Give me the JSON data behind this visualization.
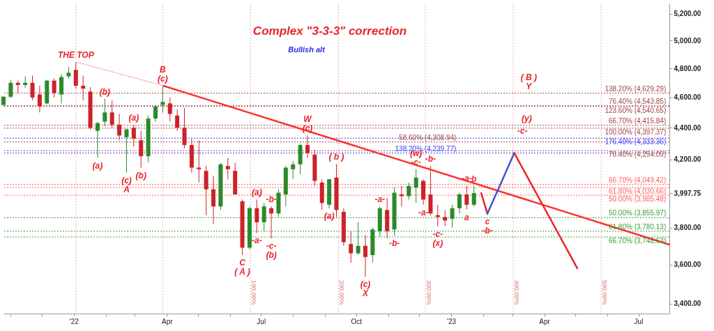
{
  "chart_data": {
    "type": "candlestick",
    "title": "Complex \"3-3-3\" correction",
    "subtitle": "Bullish alt",
    "x": [
      "2021-10-25",
      "2021-11-01",
      "2021-11-08",
      "2021-11-15",
      "2021-11-22",
      "2021-11-29",
      "2021-12-06",
      "2021-12-13",
      "2021-12-20",
      "2021-12-27",
      "2022-01-03",
      "2022-01-10",
      "2022-01-17",
      "2022-01-24",
      "2022-01-31",
      "2022-02-07",
      "2022-02-14",
      "2022-02-21",
      "2022-02-28",
      "2022-03-07",
      "2022-03-14",
      "2022-03-21",
      "2022-03-28",
      "2022-04-04",
      "2022-04-11",
      "2022-04-18",
      "2022-04-25",
      "2022-05-02",
      "2022-05-09",
      "2022-05-16",
      "2022-05-23",
      "2022-05-30",
      "2022-06-06",
      "2022-06-13",
      "2022-06-20",
      "2022-06-27",
      "2022-07-04",
      "2022-07-11",
      "2022-07-18",
      "2022-07-25",
      "2022-08-01",
      "2022-08-08",
      "2022-08-15",
      "2022-08-22",
      "2022-08-29",
      "2022-09-05",
      "2022-09-12",
      "2022-09-19",
      "2022-09-26",
      "2022-10-03",
      "2022-10-10",
      "2022-10-17",
      "2022-10-24",
      "2022-10-31",
      "2022-11-07",
      "2022-11-14",
      "2022-11-21",
      "2022-11-28",
      "2022-12-05",
      "2022-12-12",
      "2022-12-19",
      "2022-12-26",
      "2023-01-02",
      "2023-01-09",
      "2023-01-16",
      "2023-01-23"
    ],
    "ohlc": [
      [
        4550,
        4610,
        4540,
        4605
      ],
      [
        4605,
        4720,
        4595,
        4700
      ],
      [
        4700,
        4715,
        4630,
        4685
      ],
      [
        4685,
        4745,
        4665,
        4700
      ],
      [
        4700,
        4750,
        4580,
        4600
      ],
      [
        4620,
        4680,
        4500,
        4540
      ],
      [
        4560,
        4720,
        4555,
        4715
      ],
      [
        4715,
        4730,
        4600,
        4630
      ],
      [
        4620,
        4760,
        4560,
        4740
      ],
      [
        4745,
        4810,
        4730,
        4770
      ],
      [
        4790,
        4844,
        4660,
        4680
      ],
      [
        4680,
        4750,
        4580,
        4660
      ],
      [
        4640,
        4670,
        4390,
        4400
      ],
      [
        4380,
        4440,
        4210,
        4430
      ],
      [
        4440,
        4590,
        4410,
        4500
      ],
      [
        4500,
        4580,
        4400,
        4420
      ],
      [
        4420,
        4490,
        4320,
        4350
      ],
      [
        4340,
        4390,
        4120,
        4390
      ],
      [
        4400,
        4420,
        4280,
        4330
      ],
      [
        4320,
        4380,
        4150,
        4220
      ],
      [
        4220,
        4480,
        4180,
        4460
      ],
      [
        4460,
        4550,
        4440,
        4540
      ],
      [
        4550,
        4679,
        4500,
        4570
      ],
      [
        4560,
        4600,
        4440,
        4490
      ],
      [
        4480,
        4520,
        4380,
        4400
      ],
      [
        4400,
        4530,
        4270,
        4290
      ],
      [
        4290,
        4330,
        4120,
        4150
      ],
      [
        4150,
        4320,
        4060,
        4140
      ],
      [
        4130,
        4160,
        3870,
        4020
      ],
      [
        4020,
        4100,
        3820,
        3920
      ],
      [
        3920,
        4180,
        3900,
        4170
      ],
      [
        4160,
        4210,
        4080,
        4140
      ],
      [
        4130,
        4180,
        3990,
        3990
      ],
      [
        3950,
        3960,
        3650,
        3690
      ],
      [
        3690,
        3920,
        3680,
        3910
      ],
      [
        3910,
        3960,
        3770,
        3830
      ],
      [
        3830,
        3940,
        3780,
        3920
      ],
      [
        3910,
        3920,
        3740,
        3880
      ],
      [
        3880,
        4020,
        3860,
        4000
      ],
      [
        3990,
        4160,
        3920,
        4150
      ],
      [
        4140,
        4190,
        4080,
        4170
      ],
      [
        4170,
        4300,
        4110,
        4290
      ],
      [
        4290,
        4352,
        4210,
        4240
      ],
      [
        4230,
        4260,
        4040,
        4070
      ],
      [
        4060,
        4080,
        3900,
        3940
      ],
      [
        3930,
        4080,
        3910,
        4080
      ],
      [
        4090,
        4172,
        3860,
        3900
      ],
      [
        3890,
        3910,
        3700,
        3720
      ],
      [
        3710,
        3780,
        3610,
        3660
      ],
      [
        3660,
        3830,
        3650,
        3700
      ],
      [
        3700,
        3760,
        3536,
        3640
      ],
      [
        3650,
        3800,
        3610,
        3790
      ],
      [
        3780,
        3920,
        3750,
        3910
      ],
      [
        3900,
        3970,
        3740,
        3780
      ],
      [
        3790,
        4030,
        3755,
        4000
      ],
      [
        3990,
        4040,
        3920,
        3980
      ],
      [
        3980,
        4060,
        3960,
        4040
      ],
      [
        4030,
        4140,
        3940,
        4090
      ],
      [
        4070,
        4080,
        3930,
        3960
      ],
      [
        3990,
        4160,
        3870,
        3880
      ],
      [
        3870,
        3930,
        3807,
        3860
      ],
      [
        3860,
        3900,
        3810,
        3840
      ],
      [
        3850,
        3930,
        3800,
        3910
      ],
      [
        3910,
        4000,
        3880,
        3990
      ],
      [
        3990,
        4043,
        3902,
        3930
      ],
      [
        3930,
        4040,
        3920,
        3997.75
      ]
    ],
    "colors": [
      "#2a8a2a",
      "#2a8a2a",
      "#cc2229",
      "#2a8a2a",
      "#cc2229",
      "#cc2229",
      "#2a8a2a",
      "#cc2229",
      "#2a8a2a",
      "#2a8a2a",
      "#cc2229",
      "#cc2229",
      "#cc2229",
      "#2a8a2a",
      "#2a8a2a",
      "#cc2229",
      "#cc2229",
      "#2a8a2a",
      "#cc2229",
      "#cc2229",
      "#2a8a2a",
      "#2a8a2a",
      "#2a8a2a",
      "#cc2229",
      "#cc2229",
      "#cc2229",
      "#cc2229",
      "#cc2229",
      "#cc2229",
      "#cc2229",
      "#2a8a2a",
      "#cc2229",
      "#cc2229",
      "#cc2229",
      "#2a8a2a",
      "#cc2229",
      "#2a8a2a",
      "#cc2229",
      "#2a8a2a",
      "#2a8a2a",
      "#2a8a2a",
      "#2a8a2a",
      "#cc2229",
      "#cc2229",
      "#cc2229",
      "#2a8a2a",
      "#cc2229",
      "#cc2229",
      "#cc2229",
      "#2a8a2a",
      "#cc2229",
      "#2a8a2a",
      "#2a8a2a",
      "#cc2229",
      "#2a8a2a",
      "#cc2229",
      "#2a8a2a",
      "#2a8a2a",
      "#cc2229",
      "#cc2229",
      "#cc2229",
      "#cc2229",
      "#2a8a2a",
      "#2a8a2a",
      "#cc2229",
      "#2a8a2a"
    ],
    "series": [
      {
        "type": "line",
        "x": [
          "2022-01-04",
          "2022-03-29"
        ],
        "values": [
          4844,
          4679
        ],
        "color": "#f2a0a0",
        "line_style": "dotted"
      },
      {
        "type": "line",
        "x": [
          "2022-03-29",
          "2023-07-31"
        ],
        "values": [
          4679,
          3707
        ],
        "color": "#ff3030",
        "line_style": "solid"
      },
      {
        "type": "line",
        "x": [
          "2023-01-30",
          "2023-02-05"
        ],
        "values": [
          3997.75,
          3879
        ],
        "color": "#e8242b",
        "line_style": "solid"
      },
      {
        "type": "line",
        "x": [
          "2023-02-05",
          "2023-03-03"
        ],
        "values": [
          3879,
          4240
        ],
        "color": "#4450d0",
        "line_style": "solid"
      },
      {
        "type": "line",
        "x": [
          "2023-03-03",
          "2023-05-03"
        ],
        "values": [
          4240,
          3580
        ],
        "color": "#e8242b",
        "line_style": "solid"
      }
    ],
    "log": true,
    "xlim": [
      "2021-10-25",
      "2023-07-31"
    ],
    "xticks": [
      {
        "value": "2021-11-01",
        "label": null
      },
      {
        "value": "2021-12-01",
        "label": null
      },
      {
        "value": "2022-01-01",
        "label": "'22"
      },
      {
        "value": "2022-02-01",
        "label": null
      },
      {
        "value": "2022-03-01",
        "label": null
      },
      {
        "value": "2022-04-01",
        "label": "Apr"
      },
      {
        "value": "2022-05-01",
        "label": null
      },
      {
        "value": "2022-06-01",
        "label": null
      },
      {
        "value": "2022-07-01",
        "label": "Jul"
      },
      {
        "value": "2022-08-01",
        "label": null
      },
      {
        "value": "2022-09-01",
        "label": null
      },
      {
        "value": "2022-10-01",
        "label": "Oct"
      },
      {
        "value": "2022-11-01",
        "label": null
      },
      {
        "value": "2022-12-01",
        "label": null
      },
      {
        "value": "2023-01-01",
        "label": "'23"
      },
      {
        "value": "2023-02-01",
        "label": null
      },
      {
        "value": "2023-03-01",
        "label": null
      },
      {
        "value": "2023-04-01",
        "label": "Apr"
      },
      {
        "value": "2023-05-01",
        "label": null
      },
      {
        "value": "2023-06-01",
        "label": null
      },
      {
        "value": "2023-07-01",
        "label": "Jul"
      }
    ],
    "ylim": [
      3350,
      5280
    ],
    "yticks": [
      {
        "value": 3400,
        "label": "3,400.00"
      },
      {
        "value": 3600,
        "label": "3,600.00"
      },
      {
        "value": 3800,
        "label": "3,800.00"
      },
      {
        "value": 3997.75,
        "label": "3,997.75"
      },
      {
        "value": 4200,
        "label": "4,200.00"
      },
      {
        "value": 4400,
        "label": "4,400.00"
      },
      {
        "value": 4600,
        "label": "4,600.00"
      },
      {
        "value": 4800,
        "label": "4,800.00"
      },
      {
        "value": 5000,
        "label": "5,000.00"
      },
      {
        "value": 5200,
        "label": "5,200.00"
      }
    ],
    "grid": false,
    "ref_lines": [
      {
        "axis": "y",
        "value": 4629.29,
        "label": "138.20% (4,629.29)",
        "color": "#a04545",
        "line_style": "dotted"
      },
      {
        "axis": "y",
        "value": 4540.65,
        "label": "123.60% (4,540.65)",
        "color": "#a04545",
        "line_style": "dotted"
      },
      {
        "axis": "y",
        "value": 4543.85,
        "label": "76.40% (4,543.85)",
        "color": "#a04545",
        "line_style": "dotted"
      },
      {
        "axis": "y",
        "value": 4415.84,
        "label": "66.70% (4,415.84)",
        "color": "#a04545",
        "line_style": "dotted"
      },
      {
        "axis": "y",
        "value": 4397.37,
        "label": "100.00% (4,397.37)",
        "color": "#a04545",
        "line_style": "dotted"
      },
      {
        "axis": "y",
        "value": 4333.36,
        "label": "176.40% (4,333.36)",
        "color": "#3a3aff",
        "line_style": "dotted"
      },
      {
        "axis": "y",
        "value": 4308.94,
        "label": "58.60% (4,308.94)",
        "color": "#a04545",
        "line_style": "dotted"
      },
      {
        "axis": "y",
        "value": 4254.09,
        "label": "76.40% (4,254.09)",
        "color": "#a04545",
        "line_style": "dotted"
      },
      {
        "axis": "y",
        "value": 4239.77,
        "label": "138.20% (4,239.77)",
        "color": "#3a3aff",
        "line_style": "dotted"
      },
      {
        "axis": "y",
        "value": 4049.42,
        "label": "66.70% (4,049.42)",
        "color": "#ff6060",
        "line_style": "dotted"
      },
      {
        "axis": "y",
        "value": 4030.66,
        "label": "61.80% (4,030.66)",
        "color": "#ff6060",
        "line_style": "dotted"
      },
      {
        "axis": "y",
        "value": 3985.48,
        "label": "50.00% (3,985.48)",
        "color": "#ff6060",
        "line_style": "dotted"
      },
      {
        "axis": "y",
        "value": 3855.97,
        "label": "50.00% (3,855.97)",
        "color": "#3a9a3a",
        "line_style": "dotted"
      },
      {
        "axis": "y",
        "value": 3780.13,
        "label": "61.80% (3,780.13)",
        "color": "#3a9a3a",
        "line_style": "dotted"
      },
      {
        "axis": "y",
        "value": 3748.63,
        "label": "66.70% (3,748.63)",
        "color": "#3a9a3a",
        "line_style": "dotted"
      },
      {
        "axis": "x",
        "value": "2022-01-03",
        "label": null,
        "color": "#f0b0b0",
        "line_style": "dotted"
      },
      {
        "axis": "x",
        "value": "2022-03-28",
        "label": null,
        "color": "#f0b0b0",
        "line_style": "dotted"
      },
      {
        "axis": "x",
        "value": "2022-06-21",
        "label": "100.00%",
        "color": "#f0b0b0",
        "line_style": "dotted"
      },
      {
        "axis": "x",
        "value": "2022-09-14",
        "label": "200.00%",
        "color": "#f0b0b0",
        "line_style": "dotted"
      },
      {
        "axis": "x",
        "value": "2022-12-07",
        "label": "300.00%",
        "color": "#f0b0b0",
        "line_style": "dotted"
      },
      {
        "axis": "x",
        "value": "2023-03-02",
        "label": "400.00%",
        "color": "#f0b0b0",
        "line_style": "dotted"
      },
      {
        "axis": "x",
        "value": "2023-05-26",
        "label": "500.00%",
        "color": "#f0b0b0",
        "line_style": "dotted"
      }
    ],
    "annotations": [
      {
        "text": "THE TOP",
        "x": "2022-01-03",
        "y": 4844
      },
      {
        "text": "B",
        "x": "2022-03-28",
        "y": 4679
      },
      {
        "text": "(c)",
        "x": "2022-03-28",
        "y": 4679
      },
      {
        "text": "(b)",
        "x": "2022-01-31",
        "y": 4590
      },
      {
        "text": "(a)",
        "x": "2022-01-24",
        "y": 4210
      },
      {
        "text": "(c)",
        "x": "2022-02-21",
        "y": 4120
      },
      {
        "text": "A",
        "x": "2022-02-21",
        "y": 4120
      },
      {
        "text": "(a)",
        "x": "2022-02-28",
        "y": 4420
      },
      {
        "text": "(b)",
        "x": "2022-03-07",
        "y": 4150
      },
      {
        "text": "W",
        "x": "2022-08-15",
        "y": 4352
      },
      {
        "text": "(c)",
        "x": "2022-08-15",
        "y": 4352
      },
      {
        "text": "( b )",
        "x": "2022-09-12",
        "y": 4172
      },
      {
        "text": "(a)",
        "x": "2022-09-05",
        "y": 3910
      },
      {
        "text": "(a)",
        "x": "2022-06-27",
        "y": 3960
      },
      {
        "text": "-b-",
        "x": "2022-07-11",
        "y": 3920
      },
      {
        "text": "-a-",
        "x": "2022-06-27",
        "y": 3770
      },
      {
        "text": "-c-",
        "x": "2022-07-11",
        "y": 3740
      },
      {
        "text": "(b)",
        "x": "2022-07-11",
        "y": 3740
      },
      {
        "text": "C",
        "x": "2022-06-13",
        "y": 3650
      },
      {
        "text": "( A )",
        "x": "2022-06-13",
        "y": 3650
      },
      {
        "text": "(c)",
        "x": "2022-10-10",
        "y": 3536
      },
      {
        "text": "X",
        "x": "2022-10-10",
        "y": 3536
      },
      {
        "text": "-a-",
        "x": "2022-10-24",
        "y": 3920
      },
      {
        "text": "-b-",
        "x": "2022-11-07",
        "y": 3755
      },
      {
        "text": "(w)",
        "x": "2022-11-28",
        "y": 4140
      },
      {
        "text": "-c-",
        "x": "2022-11-28",
        "y": 4140
      },
      {
        "text": "-b-",
        "x": "2022-12-12",
        "y": 4160
      },
      {
        "text": "-a-",
        "x": "2022-12-05",
        "y": 3930
      },
      {
        "text": "-c-",
        "x": "2022-12-19",
        "y": 3807
      },
      {
        "text": "(x)",
        "x": "2022-12-19",
        "y": 3807
      },
      {
        "text": "-a-",
        "x": "2023-01-16",
        "y": 4043
      },
      {
        "text": "b",
        "x": "2023-01-23",
        "y": 4040
      },
      {
        "text": "a",
        "x": "2023-01-16",
        "y": 3902
      },
      {
        "text": "c",
        "x": "2023-02-05",
        "y": 3879
      },
      {
        "text": "-b-",
        "x": "2023-02-05",
        "y": 3879
      },
      {
        "text": "-c-",
        "x": "2023-03-11",
        "y": 4333.36
      },
      {
        "text": "(y)",
        "x": "2023-03-15",
        "y": 4415.84
      },
      {
        "text": "( B )",
        "x": "2023-03-17",
        "y": 4629.29
      },
      {
        "text": "Y",
        "x": "2023-03-17",
        "y": 4629.29
      }
    ]
  }
}
